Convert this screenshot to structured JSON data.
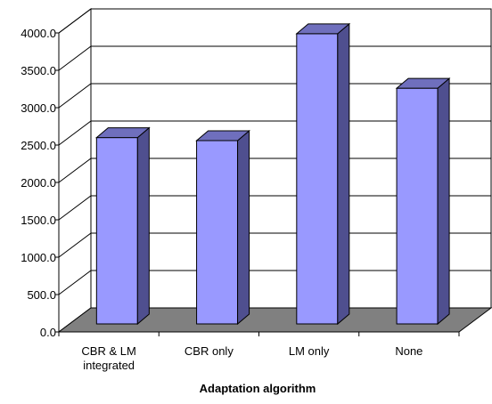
{
  "chart_data": {
    "type": "bar",
    "categories": [
      [
        "CBR & LM",
        "integrated"
      ],
      [
        "CBR only"
      ],
      [
        "LM only"
      ],
      [
        "None"
      ]
    ],
    "values": [
      2600,
      2560,
      3990,
      3260
    ],
    "title": "",
    "xlabel": "Adaptation algorithm",
    "ylabel": "",
    "ylim": [
      0,
      4000
    ],
    "y_ticks": [
      "0.0",
      "500.0",
      "1000.0",
      "1500.0",
      "2000.0",
      "2500.0",
      "3000.0",
      "3500.0",
      "4000.0"
    ],
    "grid": true,
    "legend": "none",
    "colors": {
      "bar_front": "#9999ff",
      "bar_side": "#4f4f8f",
      "bar_top": "#6f6fbd",
      "floor": "#808080",
      "grid": "#000000"
    }
  }
}
